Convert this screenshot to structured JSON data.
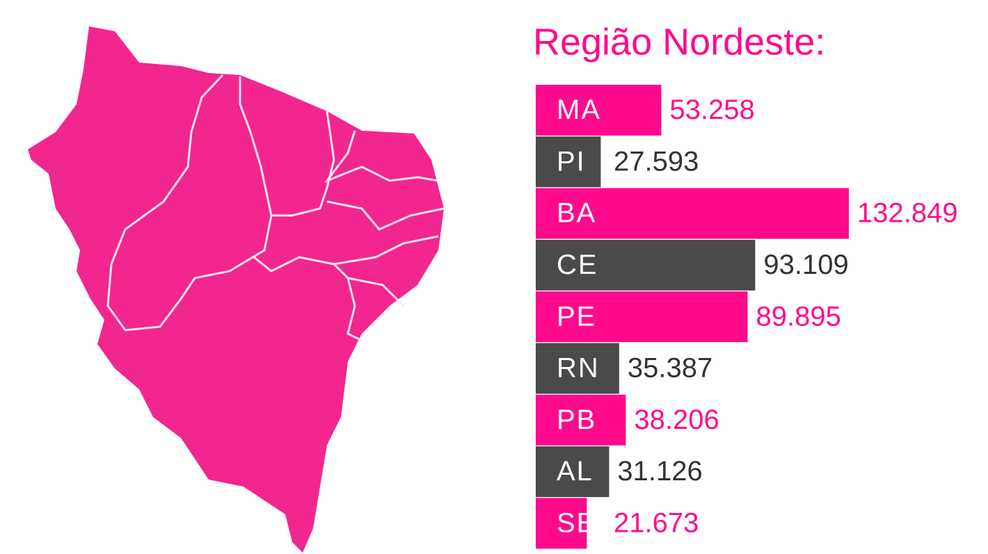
{
  "chart_data": {
    "type": "bar",
    "orientation": "horizontal",
    "title": "Região Nordeste:",
    "categories": [
      "MA",
      "PI",
      "BA",
      "CE",
      "PE",
      "RN",
      "PB",
      "AL",
      "SE"
    ],
    "values": [
      53258,
      27593,
      132849,
      93109,
      89895,
      35387,
      38206,
      31126,
      21673
    ],
    "value_labels": [
      "53.258",
      "27.593",
      "132.849",
      "93.109",
      "89.895",
      "35.387",
      "38.206",
      "31.126",
      "21.673"
    ],
    "colors": [
      "#ff0a8c",
      "#4a4a4a",
      "#ff0a8c",
      "#4a4a4a",
      "#ff0a8c",
      "#4a4a4a",
      "#ff0a8c",
      "#4a4a4a",
      "#ff0a8c"
    ]
  }
}
